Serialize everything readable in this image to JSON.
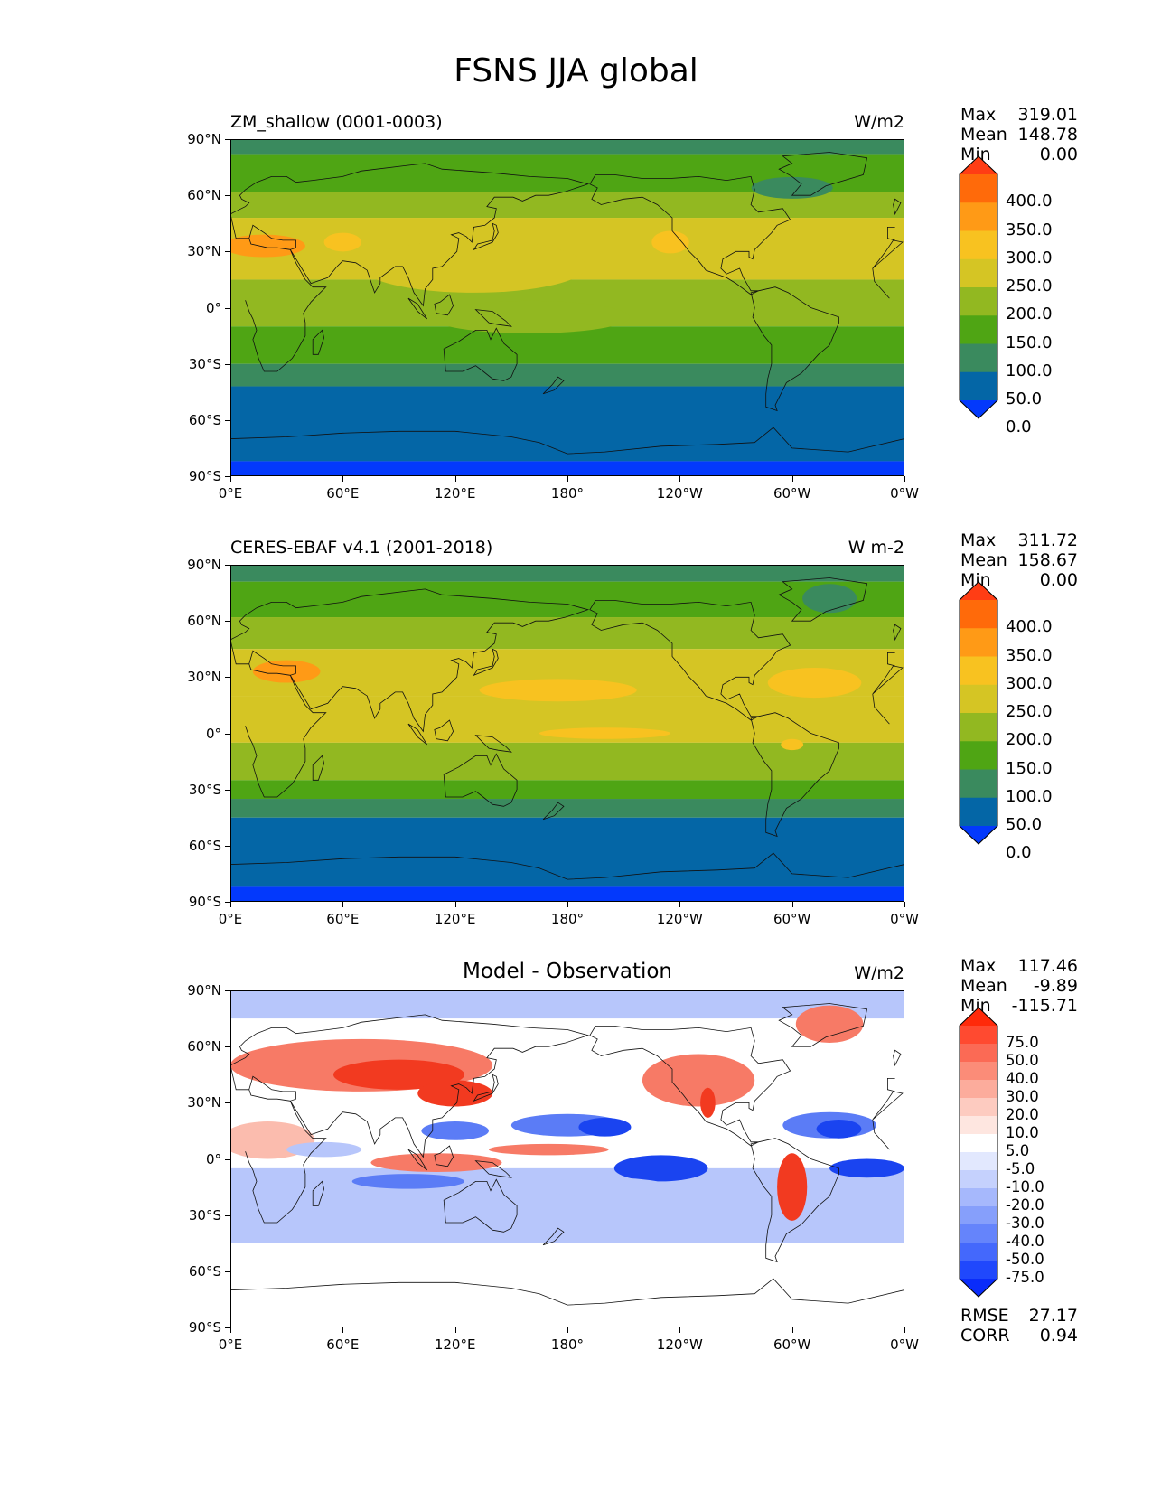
{
  "figure_title": "FSNS JJA global",
  "x_ticks": [
    "0°E",
    "60°E",
    "120°E",
    "180°",
    "120°W",
    "60°W",
    "0°W"
  ],
  "y_ticks": [
    "90°N",
    "60°N",
    "30°N",
    "0°",
    "30°S",
    "60°S",
    "90°S"
  ],
  "panels": [
    {
      "name": "model",
      "left_title": "ZM_shallow (0001-0003)",
      "center_title": "",
      "units": "W/m2",
      "stats": [
        {
          "label": "Max",
          "value": "319.01"
        },
        {
          "label": "Mean",
          "value": "148.78"
        },
        {
          "label": "Min",
          "value": "0.00"
        }
      ],
      "colorbar": {
        "labels": [
          "400.0",
          "350.0",
          "300.0",
          "250.0",
          "200.0",
          "150.0",
          "100.0",
          "50.0",
          "0.0"
        ],
        "colors": [
          "#ff3d14",
          "#ff6a0a",
          "#ff9a16",
          "#f8c220",
          "#d5c524",
          "#92b821",
          "#4fa514",
          "#3a8a5e",
          "#0466a6",
          "#0339fc"
        ]
      }
    },
    {
      "name": "observation",
      "left_title": "CERES-EBAF v4.1 (2001-2018)",
      "center_title": "",
      "units": "W m-2",
      "stats": [
        {
          "label": "Max",
          "value": "311.72"
        },
        {
          "label": "Mean",
          "value": "158.67"
        },
        {
          "label": "Min",
          "value": "0.00"
        }
      ],
      "colorbar": {
        "labels": [
          "400.0",
          "350.0",
          "300.0",
          "250.0",
          "200.0",
          "150.0",
          "100.0",
          "50.0",
          "0.0"
        ],
        "colors": [
          "#ff3d14",
          "#ff6a0a",
          "#ff9a16",
          "#f8c220",
          "#d5c524",
          "#92b821",
          "#4fa514",
          "#3a8a5e",
          "#0466a6",
          "#0339fc"
        ]
      }
    },
    {
      "name": "difference",
      "left_title": "",
      "center_title": "Model - Observation",
      "units": "W/m2",
      "stats": [
        {
          "label": "Max",
          "value": "117.46"
        },
        {
          "label": "Mean",
          "value": "-9.89"
        },
        {
          "label": "Min",
          "value": "-115.71"
        }
      ],
      "colorbar": {
        "labels": [
          "75.0",
          "50.0",
          "40.0",
          "30.0",
          "20.0",
          "10.0",
          "5.0",
          "-5.0",
          "-10.0",
          "-20.0",
          "-30.0",
          "-40.0",
          "-50.0",
          "-75.0"
        ],
        "colors": [
          "#ff2a0a",
          "#ff4a30",
          "#fb6a55",
          "#fb8c78",
          "#fcac9c",
          "#fdcbc0",
          "#fee6e0",
          "#ffffff",
          "#e2e8fe",
          "#c5d1fd",
          "#a6b8fc",
          "#869ffb",
          "#6584fb",
          "#4468fc",
          "#2048fc",
          "#0a2cfa"
        ]
      },
      "metrics": [
        {
          "label": "RMSE",
          "value": "27.17"
        },
        {
          "label": "CORR",
          "value": "0.94"
        }
      ]
    }
  ],
  "map_colors": {
    "levels": [
      "#0339fc",
      "#0466a6",
      "#3a8a5e",
      "#4fa514",
      "#92b821",
      "#d5c524",
      "#f8c220",
      "#ff9a16",
      "#ff6a0a"
    ],
    "red_strong": "#f23a20",
    "red_mid": "#f77a66",
    "red_light": "#fbbcae",
    "blue_strong": "#1a44f0",
    "blue_mid": "#5b7cf6",
    "blue_light": "#b7c6fb"
  }
}
